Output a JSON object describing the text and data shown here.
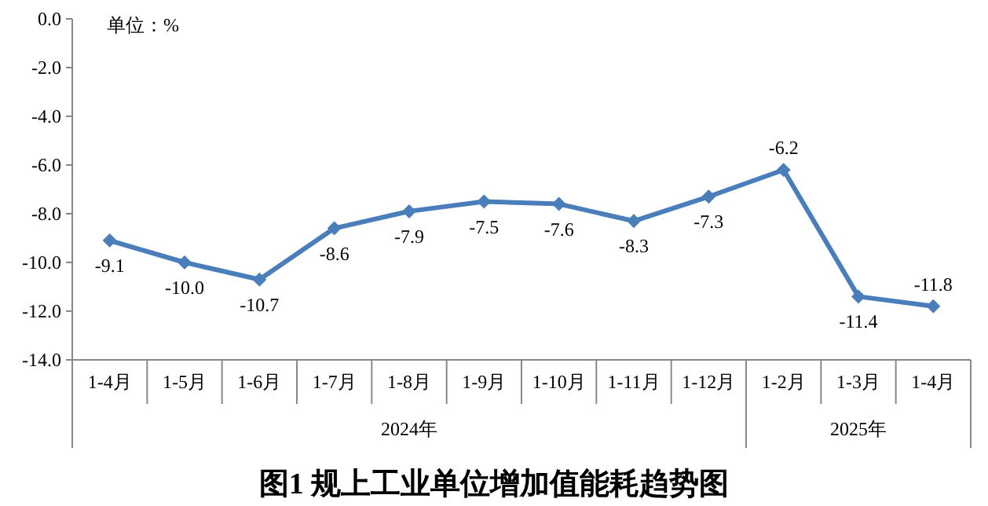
{
  "chart_data": {
    "type": "line",
    "title": "图1  规上工业单位增加值能耗趋势图",
    "categories": [
      "1-4月",
      "1-5月",
      "1-6月",
      "1-7月",
      "1-8月",
      "1-9月",
      "1-10月",
      "1-11月",
      "1-12月",
      "1-2月",
      "1-3月",
      "1-4月"
    ],
    "series": [
      {
        "color": "#4a7ebb",
        "values": [
          -9.1,
          -10.0,
          -10.7,
          -8.6,
          -7.9,
          -7.5,
          -7.6,
          -8.3,
          -7.3,
          -6.2,
          -11.4,
          -11.8
        ],
        "value_labels": [
          "-9.1",
          "-10.0",
          "-10.7",
          "-8.6",
          "-7.9",
          "-7.5",
          "-7.6",
          "-8.3",
          "-7.3",
          "-6.2",
          "-11.4",
          "-11.8"
        ]
      }
    ],
    "ylim": [
      -14,
      0
    ],
    "yticks": [
      {
        "value": 0,
        "label": "0.0"
      },
      {
        "value": -2,
        "label": "-2.0"
      },
      {
        "value": -4,
        "label": "-4.0"
      },
      {
        "value": -6,
        "label": "-6.0"
      },
      {
        "value": -8,
        "label": "-8.0"
      },
      {
        "value": -10,
        "label": "-10.0"
      },
      {
        "value": -12,
        "label": "-12.0"
      },
      {
        "value": -14,
        "label": "-14.0"
      }
    ],
    "marker": "diamond",
    "annotations": [
      "单位：%",
      "2024年",
      "2025年"
    ]
  }
}
